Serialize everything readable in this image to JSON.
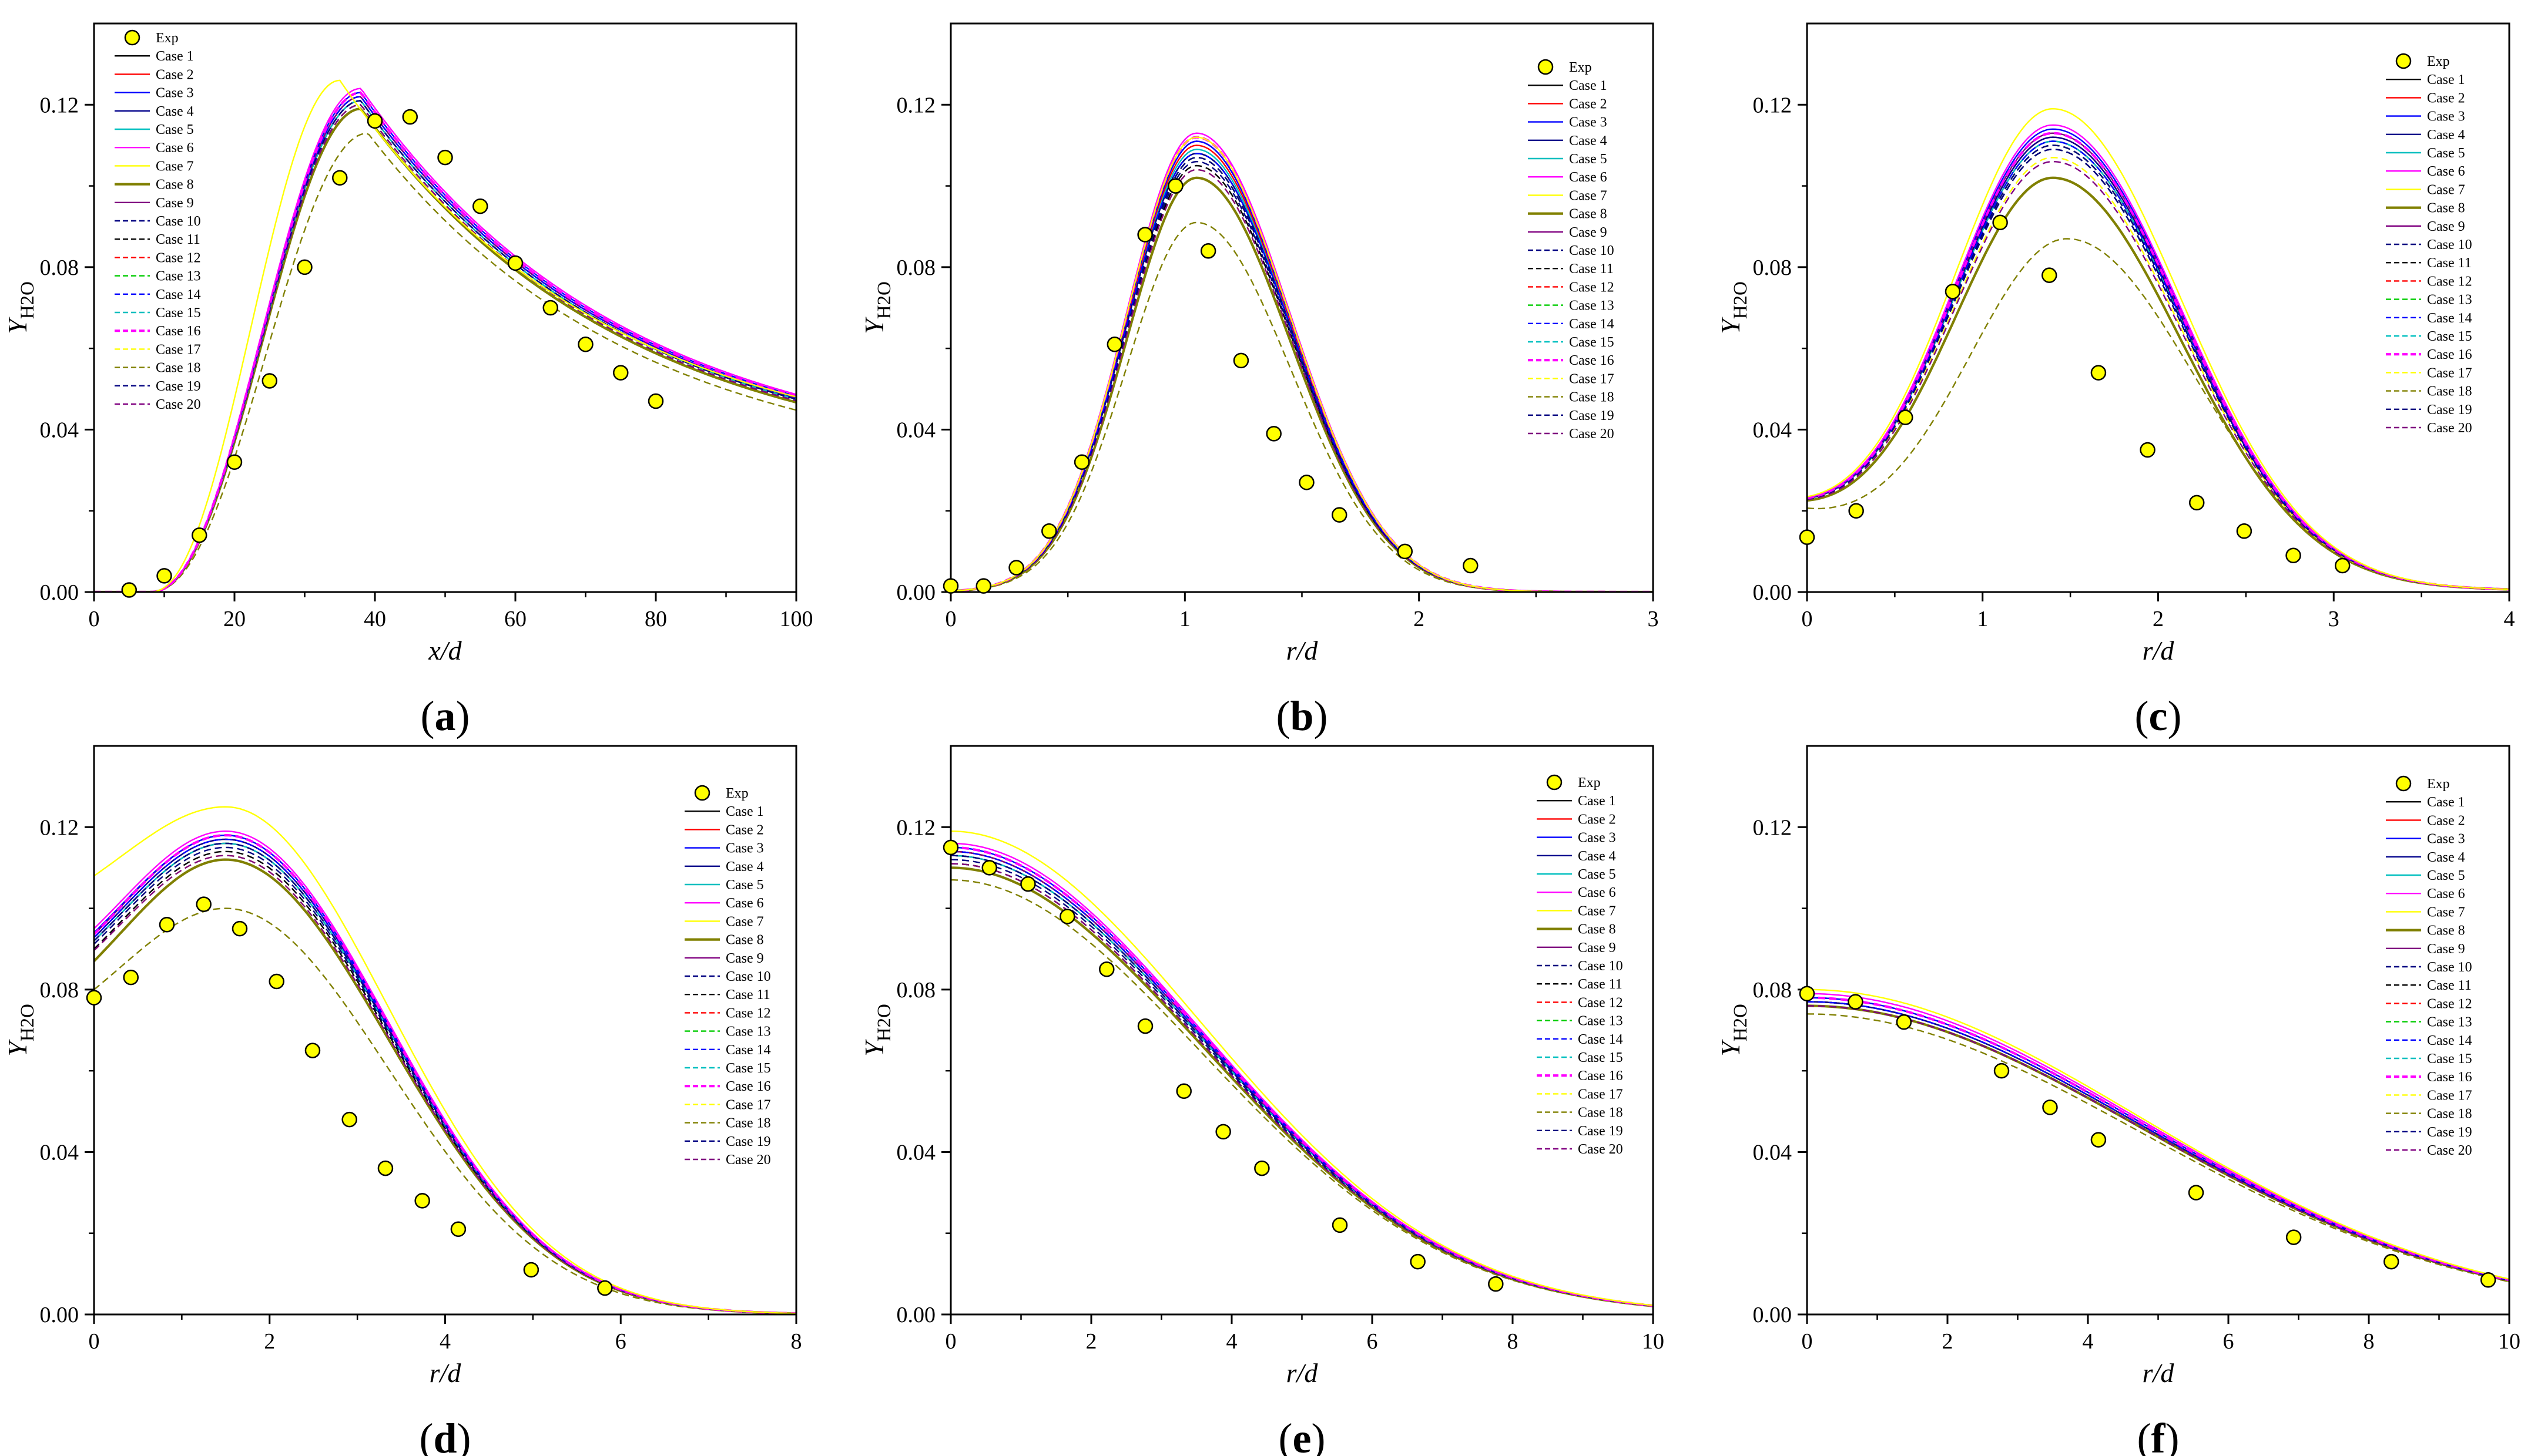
{
  "figure": {
    "legend_entries": [
      "Exp",
      "Case 1",
      "Case 2",
      "Case 3",
      "Case 4",
      "Case 5",
      "Case 6",
      "Case 7",
      "Case 8",
      "Case 9",
      "Case 10",
      "Case 11",
      "Case 12",
      "Case 13",
      "Case 14",
      "Case 15",
      "Case 16",
      "Case 17",
      "Case 18",
      "Case 19",
      "Case 20"
    ],
    "series_styles": [
      {
        "name": "Case 1",
        "color": "#000000",
        "dash": "solid"
      },
      {
        "name": "Case 2",
        "color": "#ff0000",
        "dash": "solid"
      },
      {
        "name": "Case 3",
        "color": "#0000ff",
        "dash": "solid"
      },
      {
        "name": "Case 4",
        "color": "#00008b",
        "dash": "solid"
      },
      {
        "name": "Case 5",
        "color": "#00bfbf",
        "dash": "solid"
      },
      {
        "name": "Case 6",
        "color": "#ff00ff",
        "dash": "solid"
      },
      {
        "name": "Case 7",
        "color": "#ffff00",
        "dash": "solid"
      },
      {
        "name": "Case 8",
        "color": "#808000",
        "dash": "solid"
      },
      {
        "name": "Case 9",
        "color": "#800080",
        "dash": "solid"
      },
      {
        "name": "Case 10",
        "color": "#000080",
        "dash": "dash"
      },
      {
        "name": "Case 11",
        "color": "#000000",
        "dash": "dash"
      },
      {
        "name": "Case 12",
        "color": "#ff0000",
        "dash": "dash"
      },
      {
        "name": "Case 13",
        "color": "#00cc00",
        "dash": "dash"
      },
      {
        "name": "Case 14",
        "color": "#0000ff",
        "dash": "dash"
      },
      {
        "name": "Case 15",
        "color": "#00bfbf",
        "dash": "dash"
      },
      {
        "name": "Case 16",
        "color": "#ff00ff",
        "dash": "dash"
      },
      {
        "name": "Case 17",
        "color": "#ffff00",
        "dash": "dash"
      },
      {
        "name": "Case 18",
        "color": "#808000",
        "dash": "dash"
      },
      {
        "name": "Case 19",
        "color": "#000080",
        "dash": "dash"
      },
      {
        "name": "Case 20",
        "color": "#800080",
        "dash": "dash"
      }
    ],
    "exp_marker_color": "#ffff00"
  },
  "chart_data": [
    {
      "panel": "(a)",
      "type": "line",
      "xlabel": "x/d",
      "ylabel": "Y",
      "ylabel_sub": "H2O",
      "xlim": [
        0,
        100
      ],
      "ylim": [
        0,
        0.14
      ],
      "xticks": [
        0,
        20,
        40,
        60,
        80,
        100
      ],
      "xtick_labels": [
        "0",
        "20",
        "40",
        "60",
        "80",
        "100"
      ],
      "yticks": [
        0,
        0.04,
        0.08,
        0.12
      ],
      "ytick_labels": [
        "0.00",
        "0.04",
        "0.08",
        "0.12"
      ],
      "legend": "top-left",
      "exp": {
        "x": [
          5,
          10,
          15,
          20,
          25,
          30,
          35,
          40,
          45,
          50,
          55,
          60,
          65,
          70,
          75,
          80
        ],
        "y": [
          0.0005,
          0.004,
          0.014,
          0.032,
          0.052,
          0.08,
          0.102,
          0.116,
          0.117,
          0.107,
          0.095,
          0.081,
          0.07,
          0.061,
          0.054,
          0.047
        ]
      },
      "curve": {
        "kind": "axial",
        "xs": 8,
        "rise": 17,
        "peak": 38,
        "decay": 0.014,
        "tail": 0.03
      },
      "peaks": {
        "base": 0.121,
        "Case 2": 0.122,
        "Case 3": 0.123,
        "Case 4": 0.122,
        "Case 5": 0.121,
        "Case 6": 0.124,
        "Case 7": 0.126,
        "Case 8": 0.119,
        "Case 9": 0.122,
        "Case 10": 0.121,
        "Case 11": 0.12,
        "Case 12": 0.121,
        "Case 13": 0.121,
        "Case 14": 0.122,
        "Case 15": 0.121,
        "Case 16": 0.123,
        "Case 17": 0.12,
        "Case 18": 0.113,
        "Case 19": 0.121,
        "Case 20": 0.12
      },
      "peak_shift": {
        "Case 7": -3,
        "Case 18": 1
      }
    },
    {
      "panel": "(b)",
      "type": "line",
      "xlabel": "r/d",
      "ylabel": "Y",
      "ylabel_sub": "H2O",
      "xlim": [
        0,
        3
      ],
      "ylim": [
        0,
        0.14
      ],
      "xticks": [
        0,
        1,
        2,
        3
      ],
      "xtick_labels": [
        "0",
        "1",
        "2",
        "3"
      ],
      "yticks": [
        0,
        0.04,
        0.08,
        0.12
      ],
      "ytick_labels": [
        "0.00",
        "0.04",
        "0.08",
        "0.12"
      ],
      "legend": "top-right",
      "exp": {
        "x": [
          0.0,
          0.14,
          0.28,
          0.42,
          0.56,
          0.7,
          0.83,
          0.96,
          1.1,
          1.24,
          1.38,
          1.52,
          1.66,
          1.94,
          2.22
        ],
        "y": [
          0.0015,
          0.0015,
          0.006,
          0.015,
          0.032,
          0.061,
          0.088,
          0.1,
          0.084,
          0.057,
          0.039,
          0.027,
          0.019,
          0.01,
          0.0065
        ]
      },
      "curve": {
        "kind": "ring",
        "center": 1.05,
        "sigma_l": 0.3,
        "sigma_r": 0.4,
        "floor": 0.0,
        "floor_end": 3
      },
      "peaks": {
        "base": 0.108,
        "Case 2": 0.11,
        "Case 3": 0.111,
        "Case 4": 0.108,
        "Case 5": 0.109,
        "Case 6": 0.113,
        "Case 7": 0.112,
        "Case 8": 0.102,
        "Case 9": 0.111,
        "Case 10": 0.106,
        "Case 11": 0.105,
        "Case 12": 0.107,
        "Case 13": 0.107,
        "Case 14": 0.108,
        "Case 15": 0.108,
        "Case 16": 0.112,
        "Case 17": 0.104,
        "Case 18": 0.091,
        "Case 19": 0.107,
        "Case 20": 0.104
      },
      "peak_shift": {}
    },
    {
      "panel": "(c)",
      "type": "line",
      "xlabel": "r/d",
      "ylabel": "Y",
      "ylabel_sub": "H2O",
      "xlim": [
        0,
        4
      ],
      "ylim": [
        0,
        0.14
      ],
      "xticks": [
        0,
        1,
        2,
        3,
        4
      ],
      "xtick_labels": [
        "0",
        "1",
        "2",
        "3",
        "4"
      ],
      "yticks": [
        0,
        0.04,
        0.08,
        0.12
      ],
      "ytick_labels": [
        "0.00",
        "0.04",
        "0.08",
        "0.12"
      ],
      "legend": "top-right",
      "exp": {
        "x": [
          0.0,
          0.28,
          0.56,
          0.83,
          1.1,
          1.38,
          1.66,
          1.94,
          2.22,
          2.49,
          2.77,
          3.05
        ],
        "y": [
          0.0135,
          0.02,
          0.043,
          0.074,
          0.091,
          0.078,
          0.054,
          0.035,
          0.022,
          0.015,
          0.009,
          0.0065
        ]
      },
      "curve": {
        "kind": "ring",
        "center": 1.4,
        "sigma_l": 0.58,
        "sigma_r": 0.72,
        "floor": 0.018,
        "floor_end": 4
      },
      "peaks": {
        "base": 0.111,
        "Case 2": 0.112,
        "Case 3": 0.114,
        "Case 4": 0.112,
        "Case 5": 0.111,
        "Case 6": 0.115,
        "Case 7": 0.119,
        "Case 8": 0.102,
        "Case 9": 0.113,
        "Case 10": 0.109,
        "Case 11": 0.109,
        "Case 12": 0.11,
        "Case 13": 0.11,
        "Case 14": 0.111,
        "Case 15": 0.111,
        "Case 16": 0.113,
        "Case 17": 0.107,
        "Case 18": 0.087,
        "Case 19": 0.11,
        "Case 20": 0.106
      },
      "peak_shift": {
        "Case 18": 0.08
      }
    },
    {
      "panel": "(d)",
      "type": "line",
      "xlabel": "r/d",
      "ylabel": "Y",
      "ylabel_sub": "H2O",
      "xlim": [
        0,
        8
      ],
      "ylim": [
        0,
        0.14
      ],
      "xticks": [
        0,
        2,
        4,
        6,
        8
      ],
      "xtick_labels": [
        "0",
        "2",
        "4",
        "6",
        "8"
      ],
      "yticks": [
        0,
        0.04,
        0.08,
        0.12
      ],
      "ytick_labels": [
        "0.00",
        "0.04",
        "0.08",
        "0.12"
      ],
      "legend": "top-right",
      "exp": {
        "x": [
          0.0,
          0.42,
          0.83,
          1.25,
          1.66,
          2.08,
          2.49,
          2.91,
          3.32,
          3.74,
          4.15,
          4.98,
          5.82
        ],
        "y": [
          0.078,
          0.083,
          0.096,
          0.101,
          0.095,
          0.082,
          0.065,
          0.048,
          0.036,
          0.028,
          0.021,
          0.011,
          0.0065
        ]
      },
      "curve": {
        "kind": "plateau",
        "center": 1.5,
        "sigma_l": 1.2,
        "sigma_r": 1.85,
        "axis_ratio": 0.8
      },
      "peaks": {
        "base": 0.116,
        "Case 2": 0.117,
        "Case 3": 0.118,
        "Case 4": 0.117,
        "Case 5": 0.116,
        "Case 6": 0.119,
        "Case 7": 0.125,
        "Case 8": 0.112,
        "Case 9": 0.118,
        "Case 10": 0.115,
        "Case 11": 0.114,
        "Case 12": 0.116,
        "Case 13": 0.116,
        "Case 14": 0.117,
        "Case 15": 0.116,
        "Case 16": 0.118,
        "Case 17": 0.113,
        "Case 18": 0.1,
        "Case 19": 0.116,
        "Case 20": 0.113
      },
      "axis_values": {
        "base": 0.092,
        "Case 3": 0.094,
        "Case 6": 0.095,
        "Case 7": 0.108,
        "Case 8": 0.087,
        "Case 18": 0.08,
        "Case 11": 0.09
      }
    },
    {
      "panel": "(e)",
      "type": "line",
      "xlabel": "r/d",
      "ylabel": "Y",
      "ylabel_sub": "H2O",
      "xlim": [
        0,
        10
      ],
      "ylim": [
        0,
        0.14
      ],
      "xticks": [
        0,
        2,
        4,
        6,
        8,
        10
      ],
      "xtick_labels": [
        "0",
        "2",
        "4",
        "6",
        "8",
        "10"
      ],
      "yticks": [
        0,
        0.04,
        0.08,
        0.12
      ],
      "ytick_labels": [
        "0.00",
        "0.04",
        "0.08",
        "0.12"
      ],
      "legend": "top-right",
      "exp": {
        "x": [
          0.0,
          0.55,
          1.1,
          1.66,
          2.22,
          2.77,
          3.32,
          3.88,
          4.43,
          5.54,
          6.65,
          7.76
        ],
        "y": [
          0.115,
          0.11,
          0.106,
          0.098,
          0.085,
          0.071,
          0.055,
          0.045,
          0.036,
          0.022,
          0.013,
          0.0075
        ]
      },
      "curve": {
        "kind": "gauss",
        "sigma": 3.55
      },
      "peaks": {
        "base": 0.113,
        "Case 2": 0.114,
        "Case 3": 0.115,
        "Case 4": 0.114,
        "Case 5": 0.113,
        "Case 6": 0.116,
        "Case 7": 0.119,
        "Case 8": 0.11,
        "Case 9": 0.114,
        "Case 10": 0.112,
        "Case 11": 0.111,
        "Case 12": 0.113,
        "Case 13": 0.113,
        "Case 14": 0.114,
        "Case 15": 0.113,
        "Case 16": 0.115,
        "Case 17": 0.111,
        "Case 18": 0.107,
        "Case 19": 0.113,
        "Case 20": 0.111
      }
    },
    {
      "panel": "(f)",
      "type": "line",
      "xlabel": "r/d",
      "ylabel": "Y",
      "ylabel_sub": "H2O",
      "xlim": [
        0,
        10
      ],
      "ylim": [
        0,
        0.14
      ],
      "xticks": [
        0,
        2,
        4,
        6,
        8,
        10
      ],
      "xtick_labels": [
        "0",
        "2",
        "4",
        "6",
        "8",
        "10"
      ],
      "yticks": [
        0,
        0.04,
        0.08,
        0.12
      ],
      "ytick_labels": [
        "0.00",
        "0.04",
        "0.08",
        "0.12"
      ],
      "legend": "top-right",
      "exp": {
        "x": [
          0.0,
          0.69,
          1.38,
          2.77,
          3.46,
          4.15,
          5.54,
          6.93,
          8.32,
          9.7
        ],
        "y": [
          0.079,
          0.077,
          0.072,
          0.06,
          0.051,
          0.043,
          0.03,
          0.019,
          0.013,
          0.0085
        ]
      },
      "curve": {
        "kind": "gauss",
        "sigma": 4.75
      },
      "peaks": {
        "base": 0.077,
        "Case 2": 0.077,
        "Case 3": 0.078,
        "Case 4": 0.077,
        "Case 5": 0.077,
        "Case 6": 0.079,
        "Case 7": 0.08,
        "Case 8": 0.076,
        "Case 9": 0.078,
        "Case 10": 0.077,
        "Case 11": 0.076,
        "Case 12": 0.077,
        "Case 13": 0.077,
        "Case 14": 0.077,
        "Case 15": 0.077,
        "Case 16": 0.078,
        "Case 17": 0.076,
        "Case 18": 0.074,
        "Case 19": 0.077,
        "Case 20": 0.076
      }
    }
  ]
}
